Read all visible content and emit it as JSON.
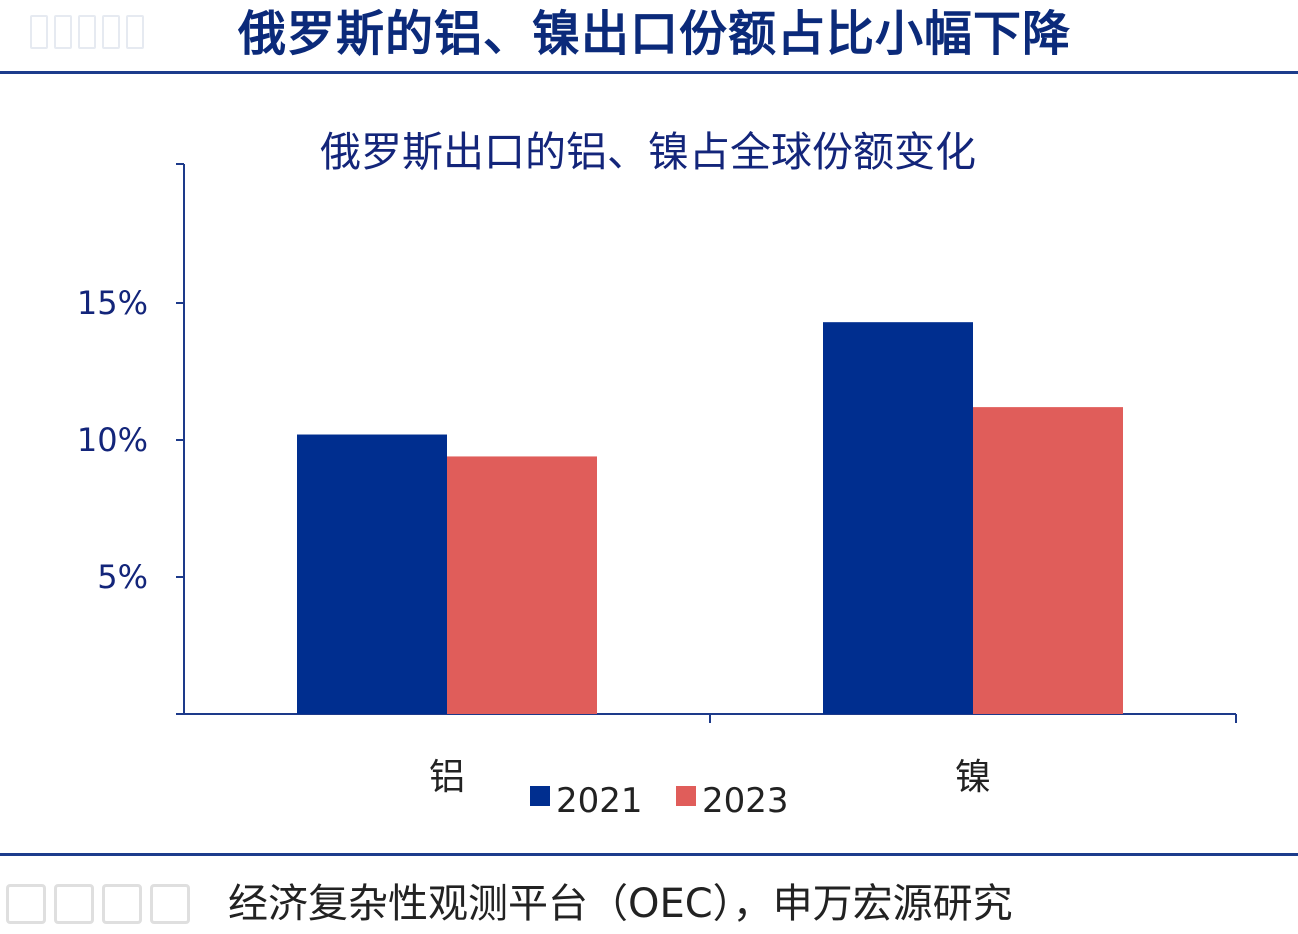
{
  "slide": {
    "title": "俄罗斯的铝、镍出口份额占比小幅下降",
    "source": "经济复杂性观测平台（OEC），申万宏源研究"
  },
  "colors": {
    "series_2021": "#002e8f",
    "series_2023": "#e05d5a",
    "axis": "#1d3a8a",
    "rule": "#1c3c8c"
  },
  "chart_data": {
    "type": "bar",
    "title": "俄罗斯出口的铝、镍占全球份额变化",
    "categories": [
      "铝",
      "镍"
    ],
    "series": [
      {
        "name": "2021",
        "values": [
          10.2,
          14.3
        ]
      },
      {
        "name": "2023",
        "values": [
          9.4,
          11.2
        ]
      }
    ],
    "ylim": [
      0,
      20
    ],
    "yticks": [
      5,
      10,
      15
    ],
    "ytick_labels": [
      "5%",
      "10%",
      "15%"
    ],
    "grid": false,
    "legend_position": "bottom"
  }
}
